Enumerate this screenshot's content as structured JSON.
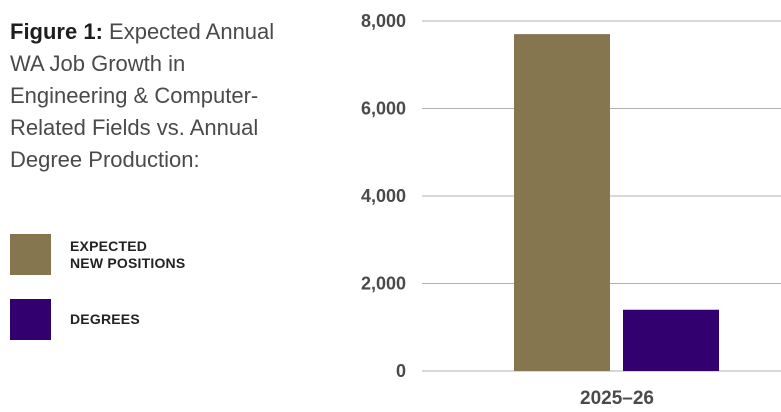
{
  "title_bold": "Figure 1:",
  "title_text": "Expected Annual WA Job Growth in Engineering & Computer-Related Fields vs. Annual Degree Production:",
  "legend": [
    {
      "label": "EXPECTED\nNEW POSITIONS",
      "color": "#857650"
    },
    {
      "label": "DEGREES",
      "color": "#33006f"
    }
  ],
  "chart_data": {
    "type": "bar",
    "categories": [
      "2025–26"
    ],
    "series": [
      {
        "name": "EXPECTED NEW POSITIONS",
        "values": [
          7700
        ],
        "color": "#857650"
      },
      {
        "name": "DEGREES",
        "values": [
          1400
        ],
        "color": "#33006f"
      }
    ],
    "ylim": [
      0,
      8000
    ],
    "yticks": [
      0,
      2000,
      4000,
      6000,
      8000
    ],
    "ytick_labels": [
      "0",
      "2,000",
      "4,000",
      "6,000",
      "8,000"
    ],
    "grid": true,
    "gridline_color": "#b0b0b0"
  }
}
